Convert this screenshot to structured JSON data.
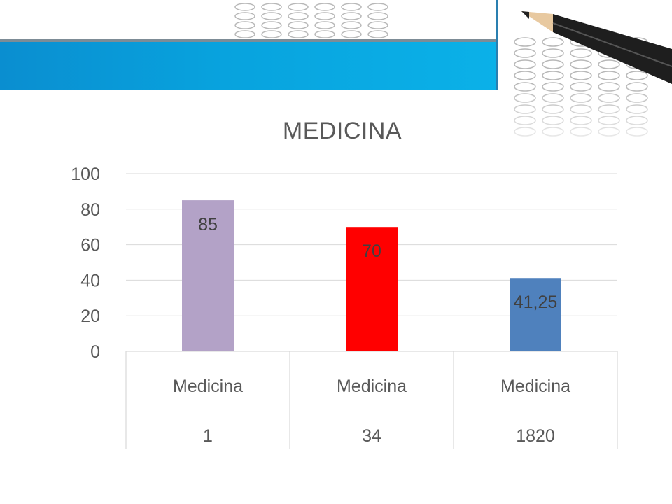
{
  "chart_data": {
    "type": "bar",
    "title": "MEDICINA",
    "xlabel": "",
    "ylabel": "",
    "ylim": [
      0,
      100
    ],
    "yticks": [
      "0",
      "20",
      "40",
      "60",
      "80",
      "100"
    ],
    "grid": true,
    "legend": "none",
    "categories": [
      {
        "line1": "Medicina",
        "line2": "1"
      },
      {
        "line1": "Medicina",
        "line2": "34"
      },
      {
        "line1": "Medicina",
        "line2": "1820"
      }
    ],
    "values": [
      85,
      70,
      41.25
    ],
    "data_labels": [
      "85",
      "70",
      "41,25"
    ],
    "colors": [
      "#b3a2c7",
      "#ff0000",
      "#4f81bd"
    ]
  },
  "decor": {
    "header_color": "#08a3de",
    "background_image": "answer-sheet-with-pencil"
  }
}
